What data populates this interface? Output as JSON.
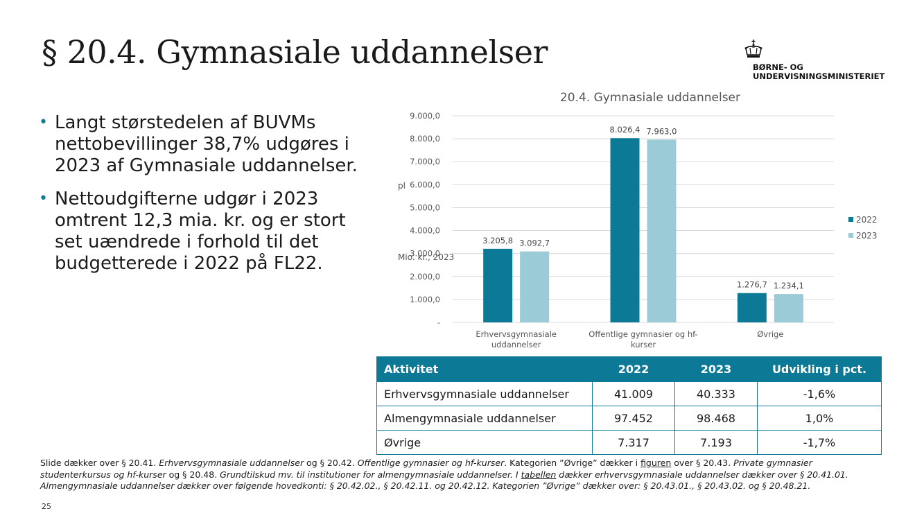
{
  "slide": {
    "title": "§ 20.4. Gymnasiale uddannelser",
    "page_number": "25"
  },
  "logo": {
    "icon": "crown-icon",
    "line1": "BØRNE- OG",
    "line2": "UNDERVISNINGSMINISTERIET"
  },
  "bullets": [
    "Langt størstedelen af BUVMs nettobevillinger 38,7% udgøres i 2023 af Gymnasiale uddannelser.",
    "Nettoudgifterne udgør i 2023 omtrent 12,3 mia. kr. og er stort set uændrede i forhold til det budgetterede i 2022 på FL22."
  ],
  "chart_data": {
    "type": "bar",
    "title": "20.4. Gymnasiale uddannelser",
    "ylabel_line1": "pl",
    "ylabel_line2": "Mio. kr., 2023",
    "categories": [
      [
        "Erhvervsgymnasiale",
        "uddannelser"
      ],
      [
        "Offentlige gymnasier og hf-",
        "kurser"
      ],
      [
        "Øvrige"
      ]
    ],
    "series": [
      {
        "name": "2022",
        "color": "#0c7a96",
        "values": [
          3205.8,
          8026.4,
          1276.7
        ],
        "labels": [
          "3.205,8",
          "8.026,4",
          "1.276,7"
        ]
      },
      {
        "name": "2023",
        "color": "#9ccbd8",
        "values": [
          3092.7,
          7963.0,
          1234.1
        ],
        "labels": [
          "3.092,7",
          "7.963,0",
          "1.234,1"
        ]
      }
    ],
    "ylim": [
      0,
      9000
    ],
    "yticks": [
      0,
      1000,
      2000,
      3000,
      4000,
      5000,
      6000,
      7000,
      8000,
      9000
    ],
    "ytick_labels": [
      "-",
      "1.000,0",
      "2.000,0",
      "3.000,0",
      "4.000,0",
      "5.000,0",
      "6.000,0",
      "7.000,0",
      "8.000,0",
      "9.000,0"
    ],
    "grid": true,
    "legend": "right"
  },
  "table": {
    "headers": [
      "Aktivitet",
      "2022",
      "2023",
      "Udvikling i pct."
    ],
    "rows": [
      [
        "Erhvervsgymnasiale uddannelser",
        "41.009",
        "40.333",
        "-1,6%"
      ],
      [
        "Almengymnasiale uddannelser",
        "97.452",
        "98.468",
        "1,0%"
      ],
      [
        "Øvrige",
        "7.317",
        "7.193",
        "-1,7%"
      ]
    ],
    "header_color": "#0c7a96"
  },
  "footnote": {
    "t1": "Slide dækker over § 20.41. ",
    "t2": "Erhvervsgymnasiale uddannelser",
    "t3": " og § 20.42. ",
    "t4": "Offentlige gymnasier og hf-kurser",
    "t5": ". Kategorien ”Øvrige” dækker i ",
    "t6": "figuren",
    "t7": " over § 20.43. ",
    "t8": "Private gymnasier studenterkursus og hf-kurser",
    "t9": " og § 20.48. ",
    "t10": "Grundtilskud mv. til institutioner for almengymnasiale uddannelser. I ",
    "t11": "tabellen",
    "t12": " dækker  erhvervsgymnasiale uddannelser dækker over § 20.41.01. Almengymnasiale uddannelser dækker over følgende hovedkonti: § 20.42.02., § 20.42.11. og 20.42.12. Kategorien ”Øvrige” dækker over: § 20.43.01., § 20.43.02. og § 20.48.21."
  }
}
